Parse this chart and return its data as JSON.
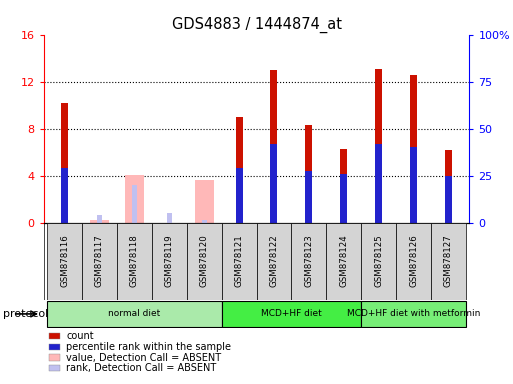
{
  "title": "GDS4883 / 1444874_at",
  "samples": [
    "GSM878116",
    "GSM878117",
    "GSM878118",
    "GSM878119",
    "GSM878120",
    "GSM878121",
    "GSM878122",
    "GSM878123",
    "GSM878124",
    "GSM878125",
    "GSM878126",
    "GSM878127"
  ],
  "count_values": [
    10.2,
    0.0,
    0.0,
    0.0,
    0.0,
    9.0,
    13.0,
    8.3,
    6.3,
    13.1,
    12.6,
    6.2
  ],
  "percentile_values": [
    29.0,
    0.0,
    0.0,
    0.0,
    0.0,
    29.0,
    42.0,
    27.5,
    26.0,
    42.0,
    40.0,
    25.0
  ],
  "absent_count_values": [
    0.0,
    0.2,
    4.1,
    0.0,
    3.6,
    0.0,
    0.0,
    0.0,
    0.0,
    0.0,
    0.0,
    0.0
  ],
  "absent_rank_values": [
    0.0,
    4.0,
    20.0,
    5.0,
    1.2,
    0.0,
    0.0,
    0.0,
    0.0,
    0.0,
    0.0,
    0.0
  ],
  "groups": [
    {
      "label": "normal diet",
      "start": 0,
      "end": 4,
      "color": "#aaeaaa"
    },
    {
      "label": "MCD+HF diet",
      "start": 5,
      "end": 8,
      "color": "#44ee44"
    },
    {
      "label": "MCD+HF diet with metformin",
      "start": 9,
      "end": 11,
      "color": "#77ee77"
    }
  ],
  "ylim_left": [
    0,
    16
  ],
  "ylim_right": [
    0,
    100
  ],
  "yticks_left": [
    0,
    4,
    8,
    12,
    16
  ],
  "ytick_labels_left": [
    "0",
    "4",
    "8",
    "12",
    "16"
  ],
  "ytick_labels_right": [
    "0",
    "25",
    "50",
    "75",
    "100%"
  ],
  "bar_color_count": "#cc1100",
  "bar_color_percentile": "#2222cc",
  "bar_color_absent_count": "#ffb8b8",
  "bar_color_absent_rank": "#c0c0f0",
  "protocol_label": "protocol",
  "legend_items": [
    {
      "color": "#cc1100",
      "label": "count"
    },
    {
      "color": "#2222cc",
      "label": "percentile rank within the sample"
    },
    {
      "color": "#ffb8b8",
      "label": "value, Detection Call = ABSENT"
    },
    {
      "color": "#c0c0f0",
      "label": "rank, Detection Call = ABSENT"
    }
  ]
}
